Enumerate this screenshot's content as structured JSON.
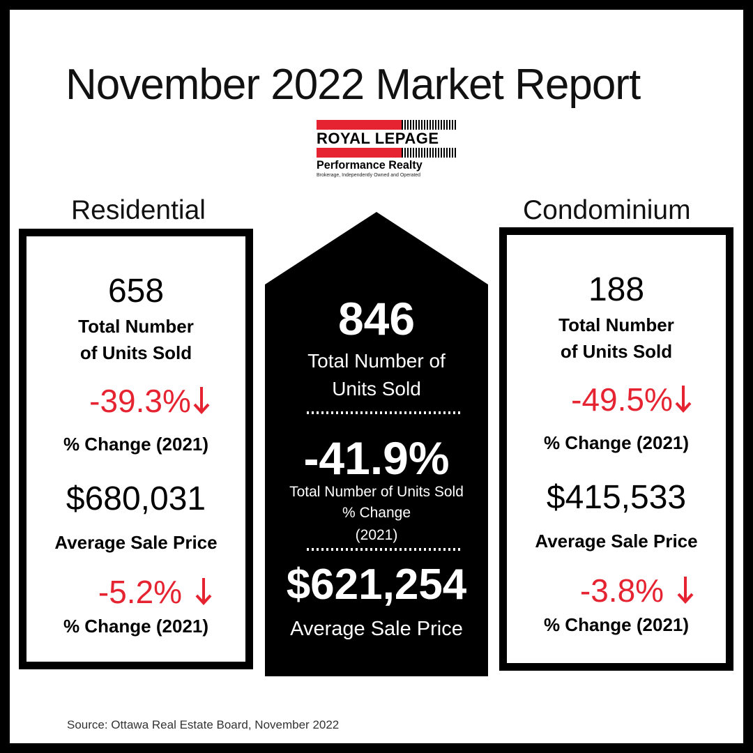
{
  "title": "November 2022 Market Report",
  "logo": {
    "brand": "ROYAL LEPAGE",
    "name": "Performance Realty",
    "tagline": "Brokerage, Independently Owned and Operated"
  },
  "residential": {
    "label": "Residential",
    "units": "658",
    "units_label_1": "Total Number",
    "units_label_2": "of Units Sold",
    "units_change": "-39.3%",
    "change_label": "% Change (2021)",
    "avg_price": "$680,031",
    "avg_price_label": "Average Sale Price",
    "price_change": "-5.2%",
    "price_change_label": "% Change (2021)"
  },
  "total": {
    "units": "846",
    "units_label_1": "Total Number of",
    "units_label_2": "Units Sold",
    "units_change": "-41.9%",
    "change_label_1": "Total Number of Units Sold",
    "change_label_2": "% Change",
    "change_label_3": "(2021)",
    "avg_price": "$621,254",
    "avg_price_label": "Average Sale Price"
  },
  "condominium": {
    "label": "Condominium",
    "units": "188",
    "units_label_1": "Total Number",
    "units_label_2": "of Units Sold",
    "units_change": "-49.5%",
    "change_label": "% Change (2021)",
    "avg_price": "$415,533",
    "avg_price_label": "Average Sale Price",
    "price_change": "-3.8%",
    "price_change_label": "% Change (2021)"
  },
  "source": "Source: Ottawa Real Estate Board, November 2022",
  "colors": {
    "accent": "#e52331",
    "dark": "#000000"
  },
  "icons": {
    "change_arrow": "arrow-down-icon"
  }
}
